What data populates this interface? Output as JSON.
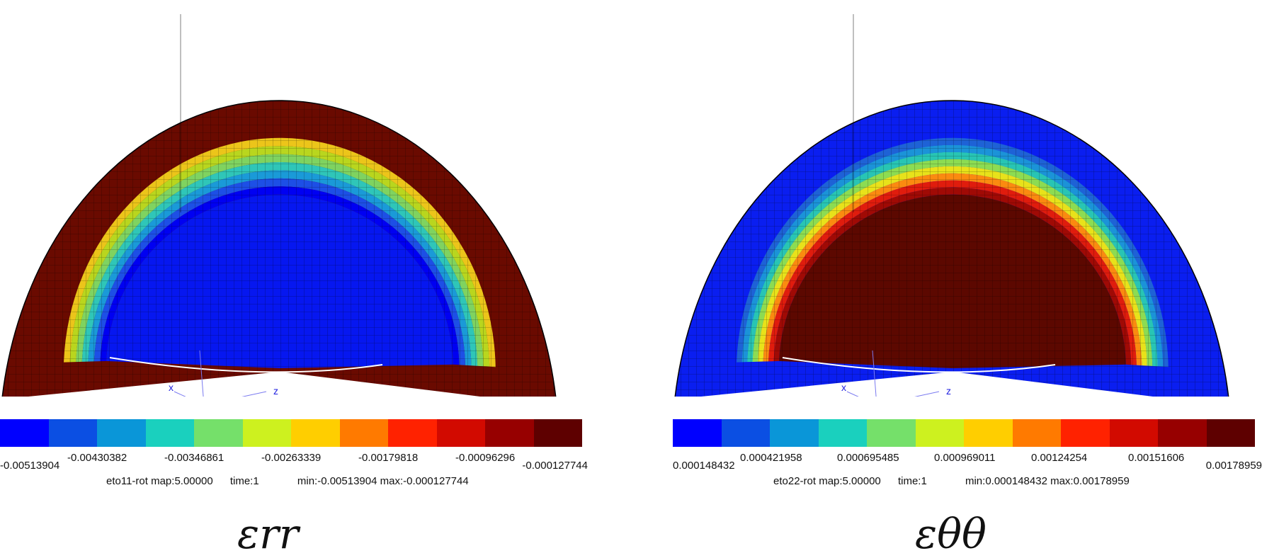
{
  "panels": [
    {
      "caption": "εrr",
      "field_info": "eto11-rot map:5.00000",
      "time_info": "time:1",
      "range_info": "min:-0.00513904 max:-0.000127744",
      "ticks": [
        "-0.00513904",
        "-0.00430382",
        "-0.00346861",
        "-0.00263339",
        "-0.00179818",
        "-0.00096296",
        "-0.000127744"
      ],
      "axis_x": "x",
      "axis_z": "z",
      "bands": [
        "#ecc51a",
        "#b9d61e",
        "#7fd360",
        "#2fc6b8",
        "#1a9ad8",
        "#1d4fe6",
        "#0000f2"
      ],
      "outer_color": "#6a0a00",
      "inner_color": "#0617f0"
    },
    {
      "caption": "εθθ",
      "field_info": "eto22-rot map:5.00000",
      "time_info": "time:1",
      "range_info": "min:0.000148432 max:0.00178959",
      "ticks": [
        "0.000148432",
        "0.000421958",
        "0.000695485",
        "0.000969011",
        "0.00124254",
        "0.00151606",
        "0.00178959"
      ],
      "axis_x": "x",
      "axis_z": "z",
      "bands": [
        "#1e62d6",
        "#1b93d8",
        "#28c5b4",
        "#8cdc52",
        "#e8e21a",
        "#fb8a10",
        "#e01c0d",
        "#a00a05"
      ],
      "outer_color": "#0a1ef0",
      "inner_color": "#5c0800"
    }
  ],
  "colorbar_colors": [
    "#0000ff",
    "#0b4fe3",
    "#0a96d8",
    "#1ad0be",
    "#75e06a",
    "#cdf11f",
    "#ffce00",
    "#ff7a00",
    "#ff2200",
    "#d20a00",
    "#970000",
    "#5e0000"
  ]
}
